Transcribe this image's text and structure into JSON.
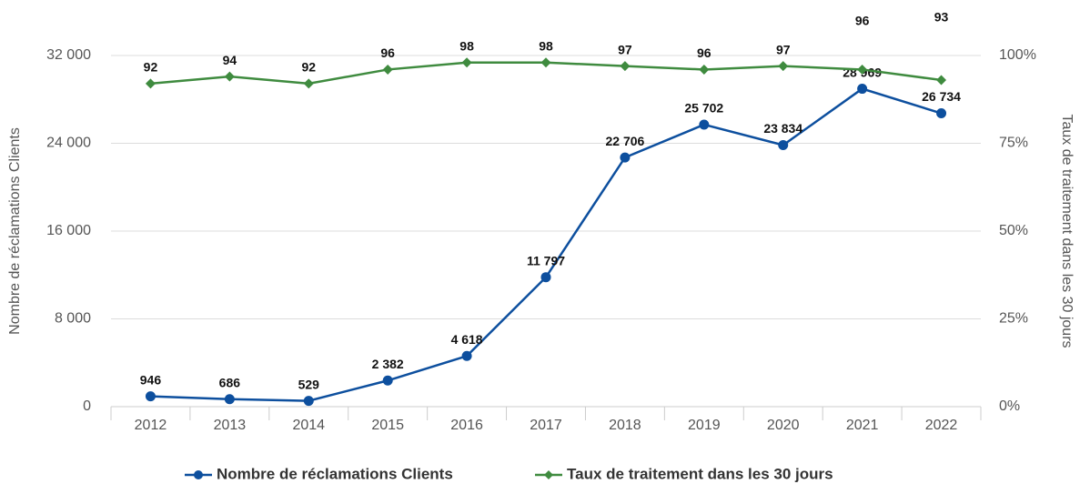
{
  "chart_data": {
    "type": "line",
    "categories": [
      "2012",
      "2013",
      "2014",
      "2015",
      "2016",
      "2017",
      "2018",
      "2019",
      "2020",
      "2021",
      "2022"
    ],
    "series": [
      {
        "name": "Nombre de réclamations Clients",
        "color": "#0d4f9e",
        "values": [
          946,
          686,
          529,
          2382,
          4618,
          11797,
          22706,
          25702,
          23834,
          28969,
          26734
        ],
        "value_labels": [
          "946",
          "686",
          "529",
          "2 382",
          "4 618",
          "11 797",
          "22 706",
          "25 702",
          "23 834",
          "28 969",
          "26 734"
        ]
      },
      {
        "name": "Taux de traitement dans les 30 jours",
        "color": "#3f8b3f",
        "axis": "y2",
        "values": [
          92,
          94,
          92,
          96,
          98,
          98,
          97,
          96,
          97,
          96,
          93
        ]
      }
    ],
    "ylabel": "Nombre de réclamations Clients",
    "y2label": "Taux de traitement dans les 30 jours",
    "ylim": [
      0,
      32000
    ],
    "yticks": [
      0,
      {
        "value": 8000,
        "label": "8 000"
      },
      {
        "value": 16000,
        "label": "16 000"
      },
      {
        "value": 24000,
        "label": "24 000"
      },
      {
        "value": 32000,
        "label": "32 000"
      }
    ],
    "y2lim": [
      0,
      100
    ],
    "y2ticks": [
      {
        "value": 0,
        "label": "0%"
      },
      {
        "value": 25,
        "label": "25%"
      },
      {
        "value": 50,
        "label": "50%"
      },
      {
        "value": 75,
        "label": "75%"
      },
      {
        "value": 100,
        "label": "100%"
      }
    ],
    "grid": true,
    "legend": "bottom"
  }
}
